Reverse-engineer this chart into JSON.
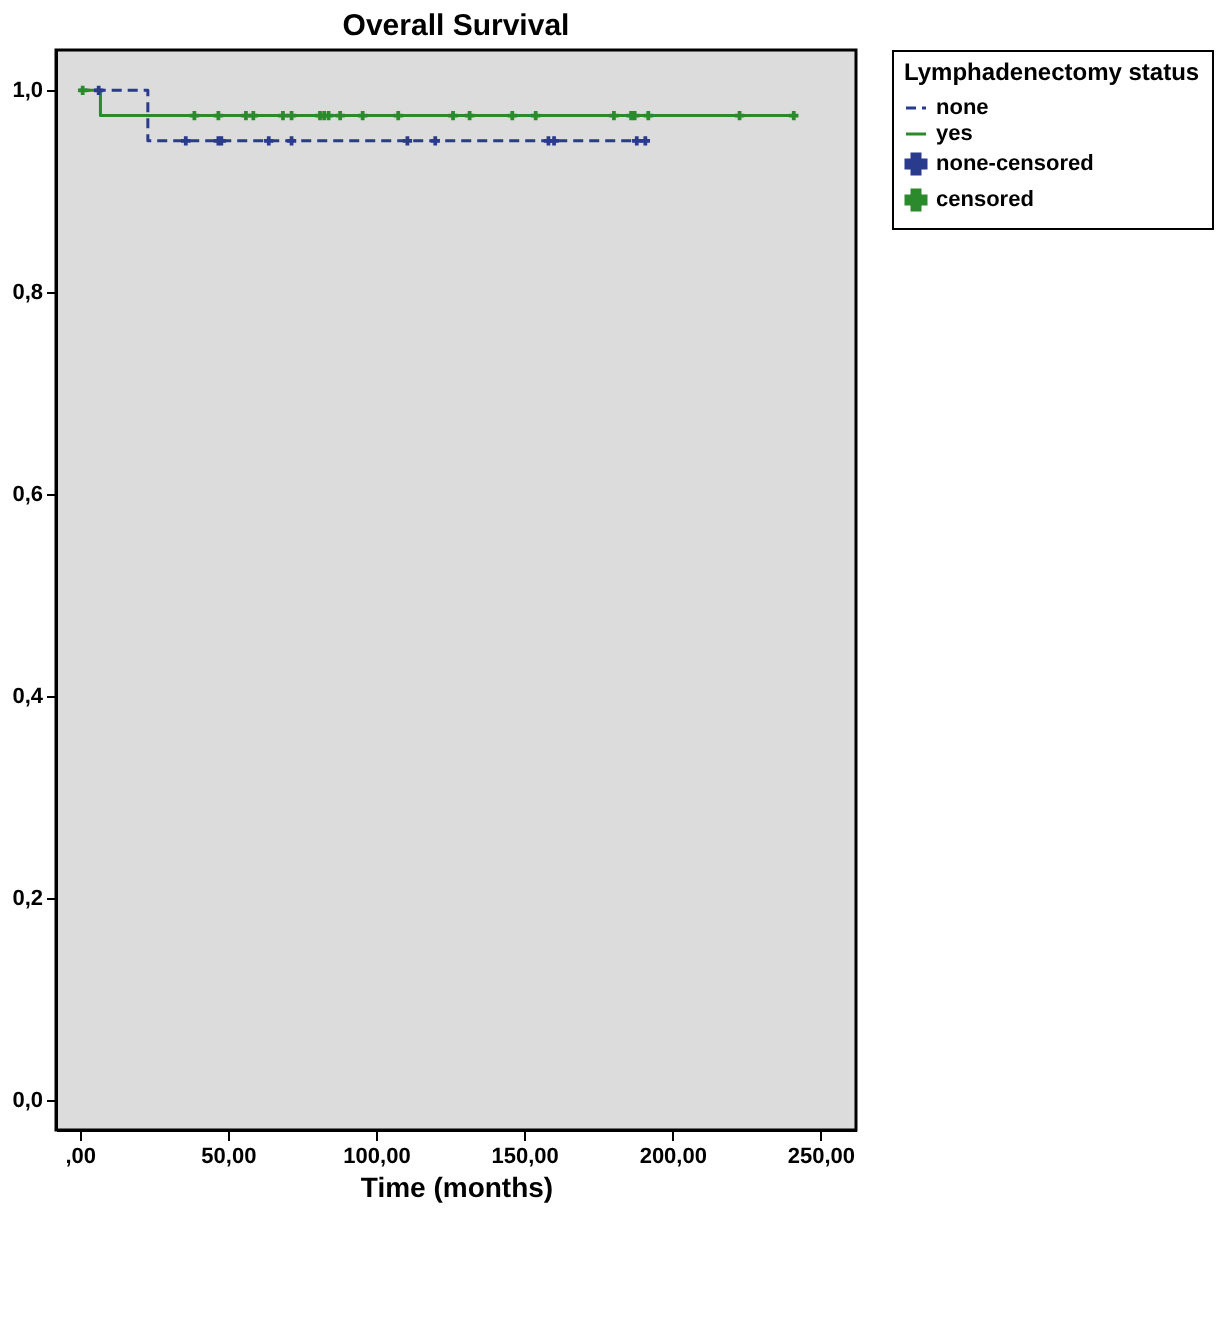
{
  "chart_data": {
    "type": "step",
    "title": "Overall Survival",
    "xlabel": "Time (months)",
    "legend_title": "Lymphadenectomy status",
    "legend": "right",
    "grid": false,
    "xlim": [
      -8,
      262
    ],
    "ylim": [
      -0.03,
      1.04
    ],
    "xticks": [
      {
        "value": 0,
        "label": ",00"
      },
      {
        "value": 50,
        "label": "50,00"
      },
      {
        "value": 100,
        "label": "100,00"
      },
      {
        "value": 150,
        "label": "150,00"
      },
      {
        "value": 200,
        "label": "200,00"
      },
      {
        "value": 250,
        "label": "250,00"
      }
    ],
    "yticks": [
      {
        "value": 0,
        "label": "0,0"
      },
      {
        "value": 0.2,
        "label": "0,2"
      },
      {
        "value": 0.4,
        "label": "0,4"
      },
      {
        "value": 0.6,
        "label": "0,6"
      },
      {
        "value": 0.8,
        "label": "0,8"
      },
      {
        "value": 1,
        "label": "1,0"
      }
    ],
    "series": [
      {
        "name": "none",
        "line_style": "dashed",
        "color": "#2a3a8c",
        "x": [
          0,
          23,
          191
        ],
        "values": [
          1,
          0.95,
          0.95
        ]
      },
      {
        "name": "yes",
        "line_style": "solid",
        "color": "#2b8a2b",
        "x": [
          0,
          7,
          241
        ],
        "values": [
          1,
          0.975,
          0.975
        ]
      },
      {
        "name": "none-censored",
        "type": "scatter",
        "marker": "cross",
        "color": "#2a3a8c",
        "x": [
          6.4,
          35.8,
          46.8,
          47.8,
          63.8,
          71.5,
          110.6,
          120,
          158.2,
          160.1,
          188,
          190.9
        ],
        "values": [
          1,
          0.95,
          0.95,
          0.95,
          0.95,
          0.95,
          0.95,
          0.95,
          0.95,
          0.95,
          0.95,
          0.95
        ]
      },
      {
        "name": "censored",
        "type": "scatter",
        "marker": "cross",
        "color": "#2b8a2b",
        "x": [
          1,
          38.7,
          46.8,
          56.1,
          58.6,
          68.6,
          71.5,
          81.1,
          82.5,
          84,
          87.9,
          95.5,
          107.5,
          126,
          131.6,
          146,
          153.9,
          180.3,
          186.1,
          187.3,
          191.9,
          222.7,
          241
        ],
        "values": [
          1,
          0.975,
          0.975,
          0.975,
          0.975,
          0.975,
          0.975,
          0.975,
          0.975,
          0.975,
          0.975,
          0.975,
          0.975,
          0.975,
          0.975,
          0.975,
          0.975,
          0.975,
          0.975,
          0.975,
          0.975,
          0.975,
          0.975
        ]
      }
    ]
  }
}
